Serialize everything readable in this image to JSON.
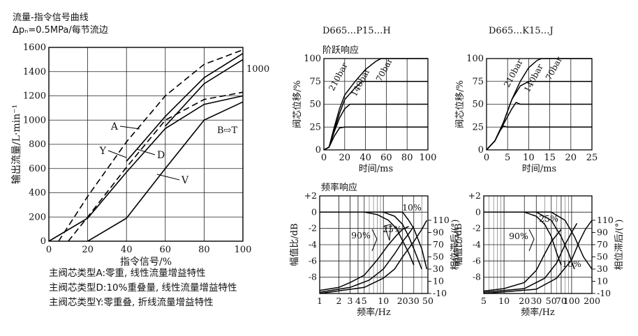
{
  "left_header": {
    "title": "流量-指令信号曲线",
    "condition": "Δpₙ=0.5MPa/每节流边"
  },
  "notes": [
    "主阀芯类型A:零重, 线性流量增益特性",
    "主阀芯类型D:10%重叠量, 线性流量增益特性",
    "主阀芯类型Y:零重叠, 折线流量增益特性"
  ],
  "chart_data": [
    {
      "id": "flow_vs_signal",
      "type": "line",
      "xlabel": "指令信号/%",
      "ylabel": "输出流量/L·min⁻¹",
      "xlim": [
        0,
        100
      ],
      "ylim": [
        0,
        1600
      ],
      "xticks": [
        0,
        20,
        40,
        60,
        80,
        100
      ],
      "yticks": [
        0,
        200,
        400,
        600,
        800,
        1000,
        1200,
        1400,
        1600
      ],
      "grid": true,
      "annotation": "B⇨T",
      "series": [
        {
          "name": "A",
          "style": "dashed",
          "x": [
            5,
            20,
            40,
            60,
            80,
            100
          ],
          "y": [
            0,
            370,
            820,
            1200,
            1460,
            1580
          ]
        },
        {
          "name": "D",
          "style": "dashed",
          "x": [
            10,
            20,
            40,
            60,
            80,
            100
          ],
          "y": [
            0,
            200,
            610,
            1000,
            1170,
            1230
          ]
        },
        {
          "name": "Y",
          "style": "solid",
          "x": [
            0,
            20,
            40,
            60,
            80,
            100
          ],
          "y": [
            0,
            190,
            570,
            930,
            1130,
            1200
          ]
        },
        {
          "name": "V",
          "style": "solid",
          "x": [
            20,
            40,
            60,
            80,
            100
          ],
          "y": [
            0,
            190,
            600,
            1000,
            1150
          ]
        },
        {
          "name": "1000",
          "style": "solid",
          "x": [
            60,
            80,
            100
          ],
          "y": [
            950,
            1300,
            1500
          ]
        },
        {
          "name": "",
          "style": "solid",
          "x": [
            40,
            60,
            80,
            100
          ],
          "y": [
            660,
            1030,
            1350,
            1550
          ]
        }
      ]
    },
    {
      "id": "step_P15",
      "type": "line",
      "title": "D665…P15…H",
      "subtitle": "阶跃响应",
      "xlabel": "时间/ms",
      "ylabel": "阀芯位移/%",
      "xlim": [
        0,
        100
      ],
      "ylim": [
        0,
        100
      ],
      "xticks": [
        0,
        20,
        40,
        60,
        80,
        100
      ],
      "yticks": [
        0,
        25,
        50,
        75,
        100
      ],
      "grid": true,
      "curve_labels": [
        "210bar",
        "140bar",
        "70bar"
      ],
      "series": [
        {
          "name": "100%",
          "x": [
            0,
            5,
            10,
            15,
            20,
            30,
            40,
            50,
            55,
            100
          ],
          "y": [
            0,
            3,
            25,
            45,
            60,
            75,
            88,
            97,
            100,
            100
          ]
        },
        {
          "name": "75%",
          "x": [
            0,
            5,
            10,
            15,
            20,
            30,
            37,
            40,
            100
          ],
          "y": [
            0,
            3,
            22,
            40,
            55,
            68,
            75,
            75,
            75
          ]
        },
        {
          "name": "50%",
          "x": [
            0,
            5,
            10,
            15,
            20,
            25,
            30,
            100
          ],
          "y": [
            0,
            3,
            20,
            35,
            45,
            50,
            50,
            50
          ]
        },
        {
          "name": "25%",
          "x": [
            0,
            5,
            10,
            15,
            20,
            100
          ],
          "y": [
            0,
            3,
            15,
            24,
            25,
            25
          ]
        }
      ]
    },
    {
      "id": "step_K15",
      "type": "line",
      "title": "D665…K15…J",
      "xlabel": "时间/ms",
      "ylabel": "阀芯位移/%",
      "xlim": [
        0,
        25
      ],
      "ylim": [
        0,
        100
      ],
      "xticks": [
        0,
        5,
        10,
        15,
        20,
        25
      ],
      "yticks": [
        0,
        25,
        50,
        75,
        100
      ],
      "grid": true,
      "curve_labels": [
        "210bar",
        "140bar",
        "70bar"
      ],
      "series": [
        {
          "name": "100%",
          "x": [
            0,
            2,
            4,
            6,
            8,
            10,
            12,
            13,
            25
          ],
          "y": [
            0,
            10,
            30,
            55,
            75,
            90,
            98,
            100,
            100
          ]
        },
        {
          "name": "75%",
          "x": [
            0,
            2,
            4,
            6,
            8,
            10,
            25
          ],
          "y": [
            0,
            10,
            30,
            55,
            70,
            75,
            75
          ]
        },
        {
          "name": "50%",
          "x": [
            0,
            2,
            4,
            6,
            7,
            8,
            25
          ],
          "y": [
            0,
            10,
            28,
            45,
            52,
            50,
            50
          ]
        },
        {
          "name": "25%",
          "x": [
            0,
            2,
            3,
            4,
            5,
            25
          ],
          "y": [
            0,
            10,
            20,
            26,
            25,
            25
          ]
        }
      ]
    },
    {
      "id": "freq_P15",
      "type": "line",
      "subtitle": "频率响应",
      "xlabel": "频率/Hz",
      "ylabel_left": "幅值比/dB",
      "ylabel_right": "相位滞后/(°)",
      "xscale": "log",
      "xlim": [
        1,
        50
      ],
      "xticks": [
        1,
        2,
        3,
        4,
        5,
        10,
        20,
        30,
        50
      ],
      "ylim_db": [
        -10,
        2
      ],
      "yticks_db": [
        2,
        0,
        -2,
        -4,
        -6,
        -8
      ],
      "ylim_phase": [
        -10,
        150
      ],
      "yticks_phase": [
        110,
        90,
        70,
        50,
        30,
        10,
        -10
      ],
      "grid": true,
      "curve_labels": [
        "10%",
        "25%",
        "90%"
      ],
      "magnitude": [
        {
          "name": "90%",
          "x": [
            1,
            5,
            8,
            12,
            16,
            20,
            25,
            30
          ],
          "y": [
            0,
            0,
            -0.3,
            -1,
            -2,
            -3.5,
            -5,
            -6.5
          ]
        },
        {
          "name": "25%",
          "x": [
            1,
            10,
            15,
            20,
            25,
            30,
            40
          ],
          "y": [
            0,
            0,
            -0.5,
            -1.5,
            -3,
            -4.5,
            -7
          ]
        },
        {
          "name": "10%",
          "x": [
            1,
            15,
            20,
            25,
            30,
            40,
            48
          ],
          "y": [
            0,
            0,
            0,
            -1,
            -2,
            -4.5,
            -7
          ]
        }
      ],
      "phase": [
        {
          "name": "90%",
          "x": [
            1,
            2,
            3,
            5,
            8,
            12,
            16,
            20,
            25
          ],
          "y": [
            -5,
            0,
            8,
            20,
            45,
            70,
            85,
            95,
            100
          ]
        },
        {
          "name": "25%",
          "x": [
            1,
            3,
            6,
            10,
            15,
            20,
            25,
            30
          ],
          "y": [
            -8,
            0,
            12,
            30,
            55,
            75,
            88,
            100
          ]
        },
        {
          "name": "10%",
          "x": [
            1,
            5,
            10,
            15,
            20,
            30,
            40,
            48
          ],
          "y": [
            -10,
            0,
            15,
            30,
            50,
            75,
            95,
            110
          ]
        }
      ]
    },
    {
      "id": "freq_K15",
      "type": "line",
      "xlabel": "频率/Hz",
      "ylabel_left": "幅值比/dB",
      "ylabel_right": "相位滞后/(°)",
      "xscale": "log",
      "xlim": [
        5,
        200
      ],
      "xticks": [
        5,
        10,
        20,
        30,
        50,
        70,
        100,
        200
      ],
      "ylim_db": [
        -10,
        2
      ],
      "yticks_db": [
        2,
        0,
        -2,
        -4,
        -6,
        -8
      ],
      "ylim_phase": [
        -10,
        150
      ],
      "yticks_phase": [
        110,
        90,
        70,
        50,
        30,
        10,
        -10
      ],
      "grid": true,
      "curve_labels": [
        "25%",
        "90%",
        "10%"
      ],
      "magnitude": [
        {
          "name": "90%",
          "x": [
            5,
            20,
            30,
            40,
            50,
            60,
            70
          ],
          "y": [
            0,
            0,
            -0.5,
            -1.5,
            -3,
            -5,
            -6.5
          ]
        },
        {
          "name": "25%",
          "x": [
            5,
            30,
            50,
            70,
            90,
            110
          ],
          "y": [
            0,
            0,
            -1,
            -3,
            -5,
            -7
          ]
        },
        {
          "name": "10%",
          "x": [
            5,
            50,
            80,
            110,
            150,
            200
          ],
          "y": [
            0,
            0,
            -1,
            -3,
            -5.5,
            -7
          ]
        }
      ],
      "phase": [
        {
          "name": "90%",
          "x": [
            5,
            10,
            20,
            30,
            40,
            50,
            70
          ],
          "y": [
            -6,
            -2,
            8,
            28,
            55,
            75,
            95
          ]
        },
        {
          "name": "25%",
          "x": [
            5,
            20,
            40,
            60,
            80,
            100,
            120
          ],
          "y": [
            -8,
            -2,
            15,
            40,
            70,
            90,
            105
          ]
        },
        {
          "name": "10%",
          "x": [
            5,
            30,
            60,
            100,
            130,
            160,
            200
          ],
          "y": [
            -10,
            -3,
            15,
            45,
            75,
            95,
            110
          ]
        }
      ]
    }
  ]
}
